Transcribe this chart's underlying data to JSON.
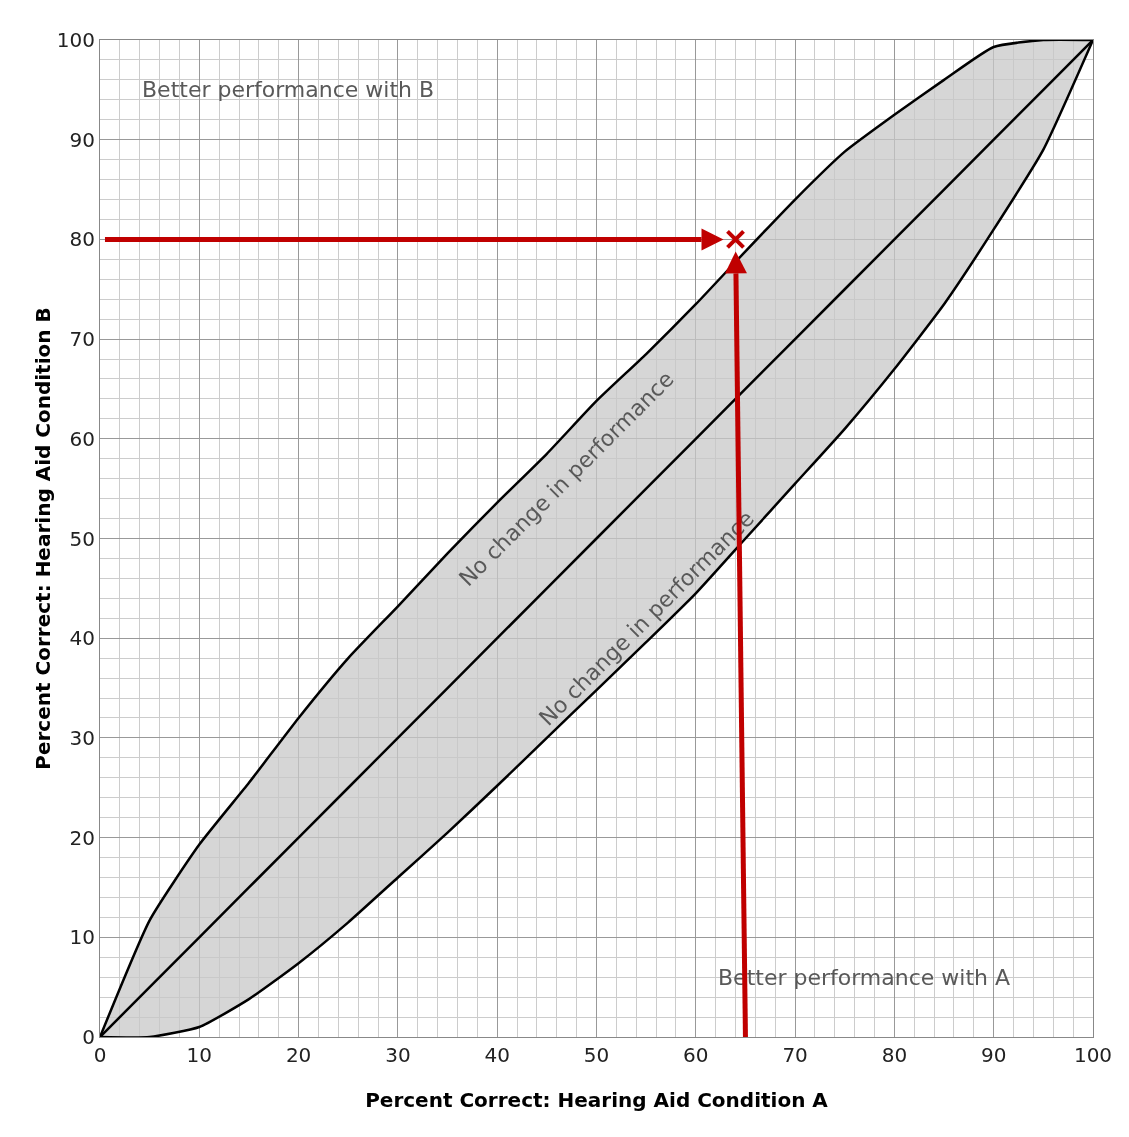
{
  "chart_data": {
    "type": "scatter",
    "xlabel": "Percent Correct: Hearing Aid Condition A",
    "ylabel": "Percent Correct: Hearing Aid Condition B",
    "x": [
      0,
      5,
      10,
      15,
      20,
      25,
      30,
      35,
      40,
      45,
      50,
      55,
      60,
      65,
      70,
      75,
      80,
      85,
      90,
      95,
      100
    ],
    "series": [
      {
        "type": "line",
        "marker": "none",
        "color": "#000000",
        "values": [
          0,
          5,
          10,
          15,
          20,
          25,
          30,
          35,
          40,
          45,
          50,
          55,
          60,
          65,
          70,
          75,
          80,
          85,
          90,
          95,
          100
        ],
        "lower": [
          0,
          0,
          1,
          3.8,
          7.4,
          11.5,
          16,
          20.5,
          25.2,
          30,
          34.8,
          39.6,
          44.5,
          50,
          55.5,
          61,
          67,
          73.5,
          81,
          89,
          100
        ],
        "upper": [
          0,
          11.7,
          19.3,
          25.5,
          32,
          38,
          43.2,
          48.5,
          53.6,
          58.5,
          63.8,
          68.5,
          73.5,
          78.8,
          84,
          88.8,
          92.5,
          96,
          99.3,
          100,
          100
        ]
      },
      {
        "color": "#c00000",
        "x": [
          64
        ],
        "values": [
          80
        ]
      }
    ],
    "marker": "cross",
    "xlim": [
      0,
      100
    ],
    "ylim": [
      0,
      100
    ],
    "xticks": [
      0,
      10,
      20,
      30,
      40,
      50,
      60,
      70,
      80,
      90,
      100
    ],
    "yticks": [
      0,
      10,
      20,
      30,
      40,
      50,
      60,
      70,
      80,
      90,
      100
    ],
    "grid": true,
    "annotations": [
      "Better performance with B",
      "No change in performance",
      "No change in performance",
      "Better performance with A"
    ]
  }
}
